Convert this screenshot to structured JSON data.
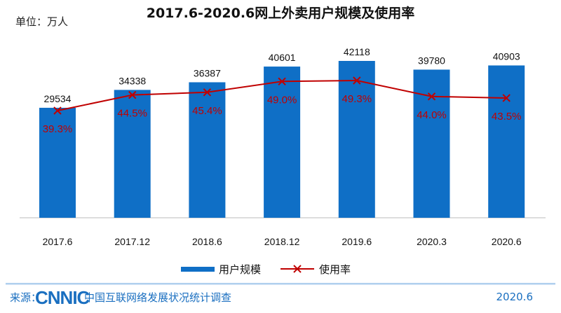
{
  "chart_data": {
    "type": "bar",
    "title": "2017.6-2020.6网上外卖用户规模及使用率",
    "unit_label": "单位：万人",
    "categories": [
      "2017.6",
      "2017.12",
      "2018.6",
      "2018.12",
      "2019.6",
      "2020.3",
      "2020.6"
    ],
    "series": [
      {
        "name": "用户规模",
        "type": "bar",
        "color": "#0f6fc6",
        "values": [
          29534,
          34338,
          36387,
          40601,
          42118,
          39780,
          40903
        ]
      },
      {
        "name": "使用率",
        "type": "line",
        "color": "#c00000",
        "unit": "%",
        "values": [
          39.3,
          44.5,
          45.4,
          49.0,
          49.3,
          44.0,
          43.5
        ],
        "labels": [
          "39.3%",
          "44.5%",
          "45.4%",
          "49.0%",
          "49.3%",
          "44.0%",
          "43.5%"
        ]
      }
    ],
    "legend": "bottom",
    "grid": false
  },
  "footer": {
    "source_label": "来源：",
    "logo_text": "CNNIC",
    "org": "中国互联网络发展状况统计调查",
    "date": "2020.6"
  }
}
